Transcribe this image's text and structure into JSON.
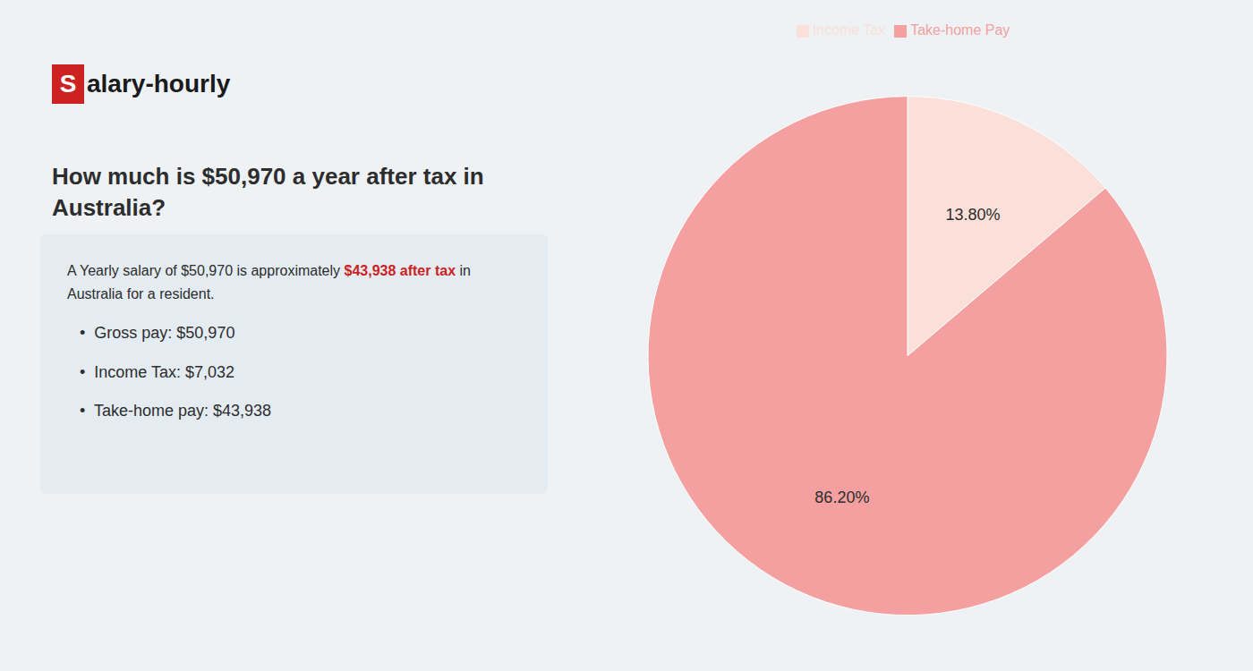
{
  "chart_data": {
    "type": "pie",
    "title": "How much is $50,970 a year after tax in\nAustralia?",
    "categories": [
      "Income Tax",
      "Take-home Pay"
    ],
    "values": [
      13.8,
      86.2
    ],
    "value_labels": [
      "13.80%",
      "86.20%"
    ],
    "colors": [
      "#fae0d8",
      "#f4a0a0"
    ],
    "data_labels": true,
    "legend": "top",
    "annotations": [
      {
        "text": "S",
        "color": "#cc2222"
      },
      {
        "text": "alary-hourly"
      },
      {
        "text": "A Yearly salary of $50,970 is approximately "
      },
      {
        "text": "$43,938 after tax",
        "color": "#cc2222"
      },
      {
        "text": " in"
      },
      {
        "text": "Australia for a resident."
      },
      {
        "text": "•  Gross pay: $50,970"
      },
      {
        "text": "•  Income Tax: $7,032"
      },
      {
        "text": "•  Take-home pay: $43,938"
      }
    ]
  }
}
